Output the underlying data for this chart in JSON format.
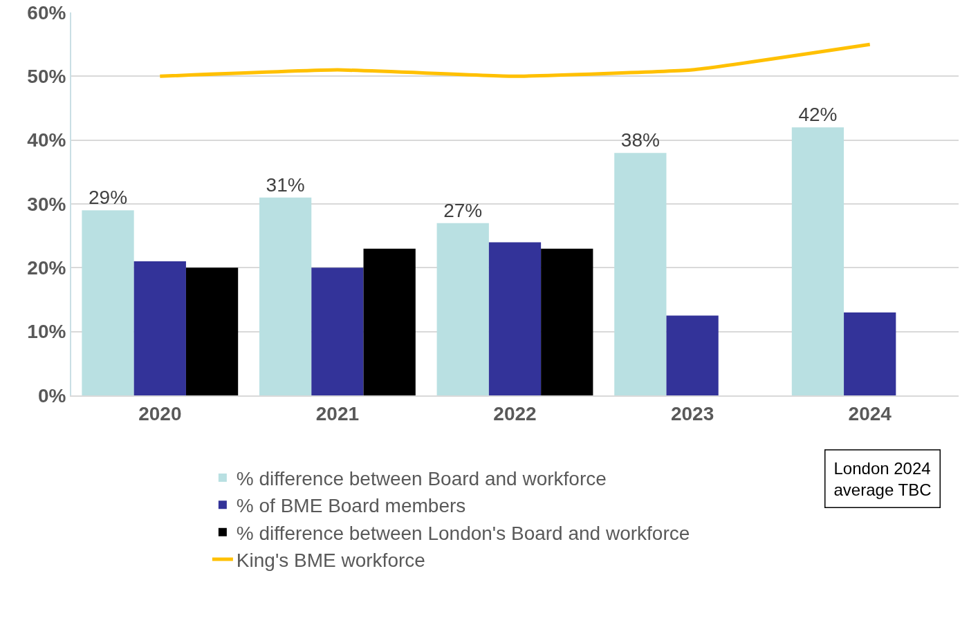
{
  "chart_data": {
    "type": "bar",
    "categories": [
      "2020",
      "2021",
      "2022",
      "2023",
      "2024"
    ],
    "series": [
      {
        "name": "% difference between Board and workforce",
        "color": "#b9e0e2",
        "values": [
          29,
          31,
          27,
          38,
          42
        ],
        "value_labels": [
          "29%",
          "31%",
          "27%",
          "38%",
          "42%"
        ]
      },
      {
        "name": "% of BME Board members",
        "color": "#333399",
        "values": [
          21,
          20,
          24,
          12.5,
          13
        ]
      },
      {
        "name": "% difference between London's Board and workforce",
        "color": "#000000",
        "values": [
          20,
          23,
          23,
          null,
          null
        ]
      },
      {
        "name": "King's BME workforce",
        "type": "line",
        "color": "#ffc000",
        "values": [
          50,
          51,
          50,
          51,
          55
        ]
      }
    ],
    "ylim": [
      0,
      60
    ],
    "yticks": [
      {
        "value": 0,
        "label": "0%"
      },
      {
        "value": 10,
        "label": "10%"
      },
      {
        "value": 20,
        "label": "20%"
      },
      {
        "value": 30,
        "label": "30%"
      },
      {
        "value": 40,
        "label": "40%"
      },
      {
        "value": 50,
        "label": "50%"
      },
      {
        "value": 60,
        "label": "60%"
      }
    ],
    "grid": "y",
    "legend": "bottom",
    "marker": "none",
    "line_style": "solid",
    "annotations": [
      "London 2024\naverage TBC"
    ]
  }
}
